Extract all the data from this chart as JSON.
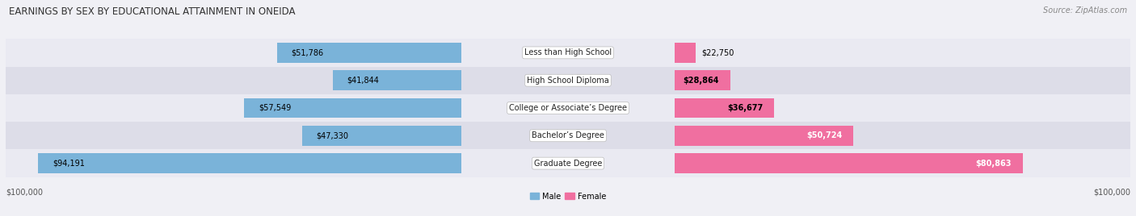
{
  "title": "EARNINGS BY SEX BY EDUCATIONAL ATTAINMENT IN ONEIDA",
  "source": "Source: ZipAtlas.com",
  "categories": [
    "Less than High School",
    "High School Diploma",
    "College or Associate’s Degree",
    "Bachelor’s Degree",
    "Graduate Degree"
  ],
  "male_values": [
    51786,
    41844,
    57549,
    47330,
    94191
  ],
  "female_values": [
    22750,
    28864,
    36677,
    50724,
    80863
  ],
  "male_color": "#7ab3d9",
  "female_color": "#f06fa0",
  "row_colors": [
    "#eaeaf2",
    "#dddde8",
    "#eaeaf2",
    "#dddde8",
    "#eaeaf2"
  ],
  "max_val": 100000,
  "xlabel_left": "$100,000",
  "xlabel_right": "$100,000",
  "legend_male": "Male",
  "legend_female": "Female",
  "title_fontsize": 8.5,
  "source_fontsize": 7,
  "bar_label_fontsize": 7,
  "category_fontsize": 7,
  "fig_bg": "#f0f0f5"
}
